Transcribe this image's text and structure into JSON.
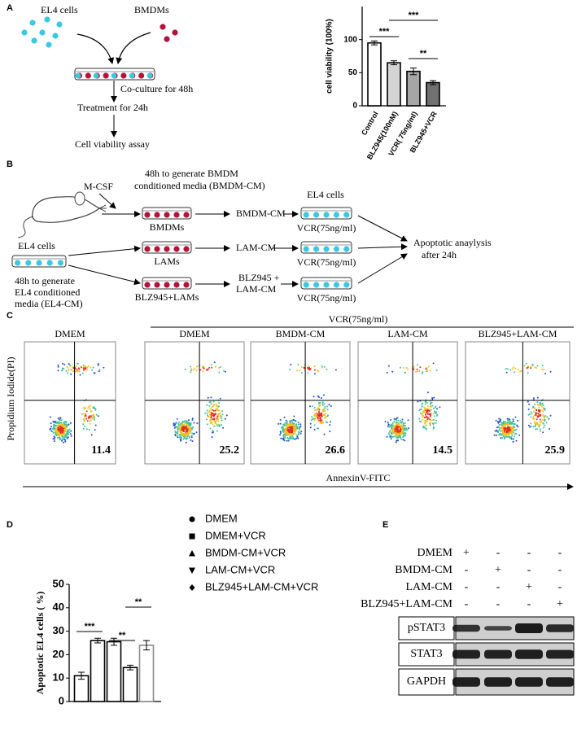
{
  "chart_data": [
    {
      "type": "bar",
      "panel_label": "A",
      "y_label": "cell viability (100%)",
      "categories": [
        "Control",
        "BLZ945(100nM)",
        "VCR( 75ng/ml)",
        "BLZ945+VCR"
      ],
      "values": [
        95,
        65,
        52,
        35
      ],
      "errors": [
        3,
        3,
        5,
        3
      ],
      "colors": [
        "#ffffff",
        "#d4d4d4",
        "#a6a6a6",
        "#707070"
      ],
      "ylim": [
        0,
        150
      ],
      "yticks": [
        0,
        50,
        100
      ],
      "annotations": [
        "***",
        "***",
        "**"
      ]
    },
    {
      "type": "bar",
      "panel_label": "D",
      "y_label": "Apoptotic EL4 cells ( %)",
      "categories": [
        "DMEM",
        "DMEM+VCR",
        "BMDM-CM+VCR",
        "LAM-CM+VCR",
        "BLZ945+LAM-CM+VCR"
      ],
      "values": [
        11,
        26,
        25.5,
        14.5,
        24
      ],
      "errors": [
        1.5,
        1,
        1.5,
        1,
        2
      ],
      "edge_colors": [
        "#000000",
        "#000000",
        "#000000",
        "#000000",
        "#8c8c8c"
      ],
      "ylim": [
        0,
        50
      ],
      "yticks": [
        0,
        10,
        20,
        30,
        40,
        50
      ],
      "annotations": [
        "***",
        "**",
        "**"
      ]
    }
  ],
  "panel_a": {
    "el4": "EL4 cells",
    "bmdm": "BMDMs",
    "step1": "Co-culture for 48h",
    "step2": "Treatment for 24h",
    "step3": "Cell viability assay"
  },
  "panel_b": {
    "label": "B",
    "mcsf": "M-CSF",
    "bmdm_note": [
      "48h to generate BMDM",
      "conditioned media (BMDM-CM)"
    ],
    "el4_left": "EL4 cells",
    "el4_note": [
      "48h to generate",
      "EL4 conditioned",
      "media (EL4-CM)"
    ],
    "bmdms": "BMDMs",
    "lams": "LAMs",
    "blz_lams": "BLZ945+LAMs",
    "bmdm_cm": "BMDM-CM",
    "lam_cm": "LAM-CM",
    "blz_lam_cm": [
      "BLZ945 +",
      "LAM-CM"
    ],
    "el4_right": "EL4 cells",
    "vcr": [
      "VCR(75ng/ml)",
      "VCR(75ng/ml)",
      "VCR(75ng/ml)"
    ],
    "result": [
      "Apoptotic anaylysis",
      "after 24h"
    ]
  },
  "panel_c": {
    "label": "C",
    "treatment": "VCR(75ng/ml)",
    "y_label": "Propidium Iodide(PI)",
    "x_label": "AnnexinV-FITC",
    "plots": [
      {
        "title": "DMEM",
        "value": 11.4
      },
      {
        "title": "DMEM",
        "value": 25.2
      },
      {
        "title": "BMDM-CM",
        "value": 26.6
      },
      {
        "title": "LAM-CM",
        "value": 14.5
      },
      {
        "title": "BLZ945+LAM-CM",
        "value": 25.9
      }
    ]
  },
  "panel_e": {
    "label": "E",
    "conditions": [
      "DMEM",
      "BMDM-CM",
      "LAM-CM",
      "BLZ945+LAM-CM"
    ],
    "signs": [
      [
        "+",
        "-",
        "-",
        "-"
      ],
      [
        "-",
        "+",
        "-",
        "-"
      ],
      [
        "-",
        "-",
        "+",
        "-"
      ],
      [
        "-",
        "-",
        "-",
        "+"
      ]
    ],
    "bands": [
      "pSTAT3",
      "STAT3",
      "GAPDH"
    ]
  }
}
